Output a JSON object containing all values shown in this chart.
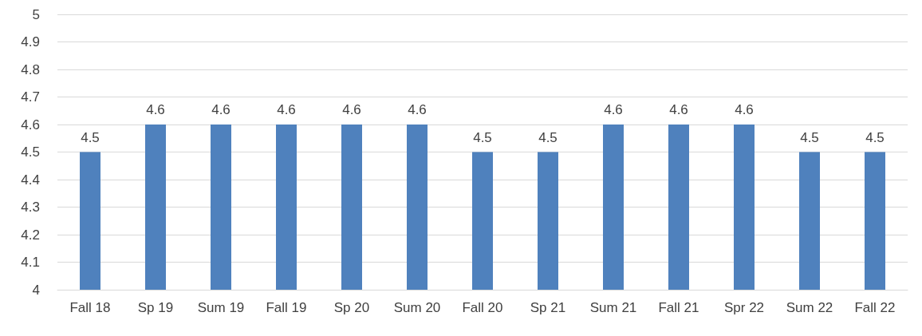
{
  "chart_data": {
    "type": "bar",
    "categories": [
      "Fall 18",
      "Sp 19",
      "Sum 19",
      "Fall 19",
      "Sp 20",
      "Sum 20",
      "Fall 20",
      "Sp 21",
      "Sum 21",
      "Fall 21",
      "Spr 22",
      "Sum 22",
      "Fall 22"
    ],
    "values": [
      4.5,
      4.6,
      4.6,
      4.6,
      4.6,
      4.6,
      4.5,
      4.5,
      4.6,
      4.6,
      4.6,
      4.5,
      4.5
    ],
    "color": "#4f81bd",
    "ylim": [
      4,
      5
    ],
    "yticks": [
      4,
      4.1,
      4.2,
      4.3,
      4.4,
      4.5,
      4.6,
      4.7,
      4.8,
      4.9,
      5
    ],
    "grid": "y",
    "data_labels": true
  }
}
